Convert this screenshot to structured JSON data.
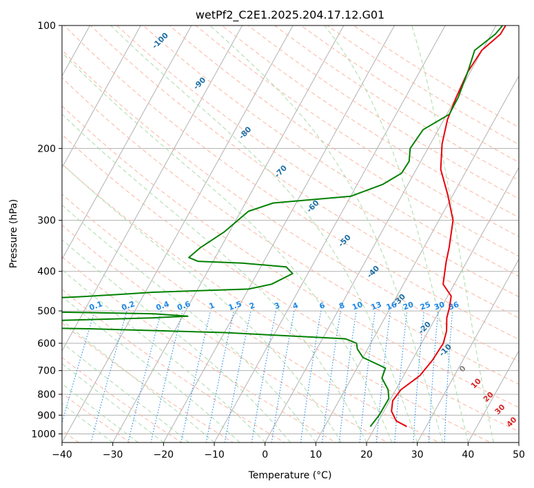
{
  "chart_data": {
    "type": "line",
    "subtype": "skew-T log-P diagram",
    "title": "wetPf2_C2E1.2025.204.17.12.G01",
    "xlabel": "Temperature (°C)",
    "ylabel": "Pressure (hPa)",
    "xlim": [
      -40,
      50
    ],
    "ylim": [
      1050,
      100
    ],
    "y_scale": "log",
    "x_ticks": [
      -40,
      -30,
      -20,
      -10,
      0,
      10,
      20,
      30,
      40,
      50
    ],
    "x_tick_labels": [
      "−40",
      "−30",
      "−20",
      "−10",
      "0",
      "10",
      "20",
      "30",
      "40",
      "50"
    ],
    "y_ticks": [
      100,
      200,
      300,
      400,
      500,
      600,
      700,
      800,
      900,
      1000
    ],
    "y_tick_labels": [
      "100",
      "200",
      "300",
      "400",
      "500",
      "600",
      "700",
      "800",
      "900",
      "1000"
    ],
    "grid": true,
    "series": [
      {
        "role": "temperature",
        "color": "#e8000b",
        "points": [
          [
            26.2,
            960
          ],
          [
            23.5,
            930
          ],
          [
            21.5,
            880
          ],
          [
            20.6,
            830
          ],
          [
            21.0,
            780
          ],
          [
            23.2,
            720
          ],
          [
            24.0,
            660
          ],
          [
            24.3,
            600
          ],
          [
            23.6,
            560
          ],
          [
            22.2,
            520
          ],
          [
            21.6,
            490
          ],
          [
            20.7,
            460
          ],
          [
            17.8,
            430
          ],
          [
            16.0,
            380
          ],
          [
            15.0,
            350
          ],
          [
            12.8,
            300
          ],
          [
            9.0,
            260
          ],
          [
            4.8,
            225
          ],
          [
            2.3,
            195
          ],
          [
            0.7,
            170
          ],
          [
            0.0,
            150
          ],
          [
            -0.5,
            130
          ],
          [
            -0.1,
            115
          ],
          [
            1.8,
            105
          ],
          [
            1.9,
            100
          ]
        ]
      },
      {
        "role": "dewpoint",
        "color": "#008000",
        "points": [
          [
            19.0,
            960
          ],
          [
            19.5,
            900
          ],
          [
            19.6,
            820
          ],
          [
            18.5,
            780
          ],
          [
            16.0,
            730
          ],
          [
            15.6,
            690
          ],
          [
            10.0,
            650
          ],
          [
            8.0,
            620
          ],
          [
            7.2,
            600
          ],
          [
            4.5,
            585
          ],
          [
            -20.0,
            565
          ],
          [
            -47.0,
            553
          ],
          [
            -60.0,
            550
          ],
          [
            -64.0,
            535
          ],
          [
            -55.0,
            528
          ],
          [
            -36.0,
            520
          ],
          [
            -29.0,
            515
          ],
          [
            -36.0,
            508
          ],
          [
            -56.0,
            503
          ],
          [
            -75.0,
            500
          ],
          [
            -75.0,
            475
          ],
          [
            -53.0,
            462
          ],
          [
            -44.0,
            455
          ],
          [
            -38.5,
            450
          ],
          [
            -20.0,
            442
          ],
          [
            -16.0,
            430
          ],
          [
            -13.0,
            405
          ],
          [
            -15.0,
            390
          ],
          [
            -24.0,
            382
          ],
          [
            -33.0,
            378
          ],
          [
            -35.2,
            370
          ],
          [
            -34.0,
            350
          ],
          [
            -31.0,
            320
          ],
          [
            -28.5,
            285
          ],
          [
            -24.5,
            272
          ],
          [
            -10.0,
            262
          ],
          [
            -5.0,
            245
          ],
          [
            -2.5,
            230
          ],
          [
            -2.3,
            215
          ],
          [
            -3.5,
            200
          ],
          [
            -3.0,
            180
          ],
          [
            0.5,
            165
          ],
          [
            0.4,
            150
          ],
          [
            -0.5,
            130
          ],
          [
            -1.5,
            115
          ],
          [
            0.8,
            105
          ],
          [
            1.3,
            100
          ]
        ]
      }
    ],
    "mixing_ratio_labels": [
      "0.1",
      "0.2",
      "0.4",
      "0.6",
      "1",
      "1.5",
      "2",
      "3",
      "4",
      "6",
      "8",
      "10",
      "13",
      "16",
      "20",
      "25",
      "30",
      "36"
    ],
    "dry_adiabat_labels": [
      "-100",
      "-90",
      "-80",
      "-70",
      "-60",
      "-50",
      "-40",
      "-30",
      "-20",
      "-10",
      "0",
      "10",
      "20",
      "30",
      "40"
    ],
    "colors": {
      "temperature": "#e8000b",
      "dewpoint": "#008000",
      "grid": "#b0b0b0",
      "dry_adiabat": "#fbb4a0",
      "moist_adiabat": "#a8dba8",
      "mixing_ratio": "#1e88e5",
      "isotherm_label_blue": "#1f6fa3",
      "isotherm_label_red": "#d62728",
      "isotherm_label_zero": "#808080"
    }
  }
}
